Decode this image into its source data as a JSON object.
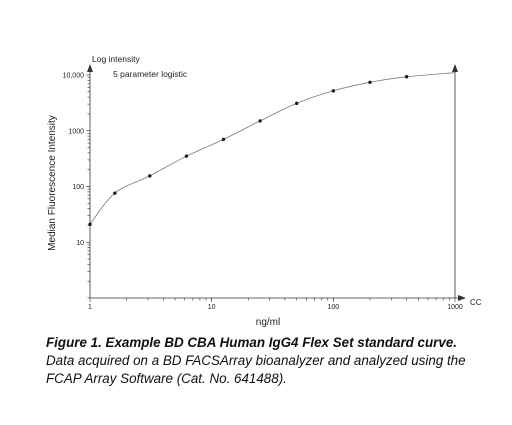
{
  "chart_data": {
    "type": "scatter",
    "fit_label": "5 parameter logistic",
    "y_axis_title": "Log intensity",
    "ylabel": "Median Fluorescence Intensity",
    "xlabel": "ng/ml",
    "x_end_label": "CC",
    "x_scale": "log",
    "y_scale": "log",
    "xlim": [
      1,
      1000
    ],
    "ylim": [
      1,
      10000
    ],
    "x_ticks": [
      1,
      10,
      100,
      1000
    ],
    "x_tick_labels": [
      "1",
      "10",
      "100",
      "1000"
    ],
    "y_ticks": [
      10,
      100,
      1000,
      10000
    ],
    "y_tick_labels": [
      "10",
      "100",
      "1000",
      "10,000"
    ],
    "grid": false,
    "points": {
      "x": [
        1.0,
        1.6,
        3.1,
        6.2,
        12.5,
        25,
        50,
        100,
        200,
        400
      ],
      "y": [
        21,
        76,
        155,
        350,
        700,
        1500,
        3100,
        5200,
        7400,
        9300
      ]
    },
    "curve_color": "#7a7a7a",
    "point_color": "#1a1a1a"
  },
  "caption": {
    "bold": "Figure 1. Example BD CBA Human IgG4 Flex Set standard curve.",
    "text": "Data acquired on a BD FACSArray bioanalyzer and analyzed using the FCAP Array Software (Cat. No. 641488)."
  }
}
